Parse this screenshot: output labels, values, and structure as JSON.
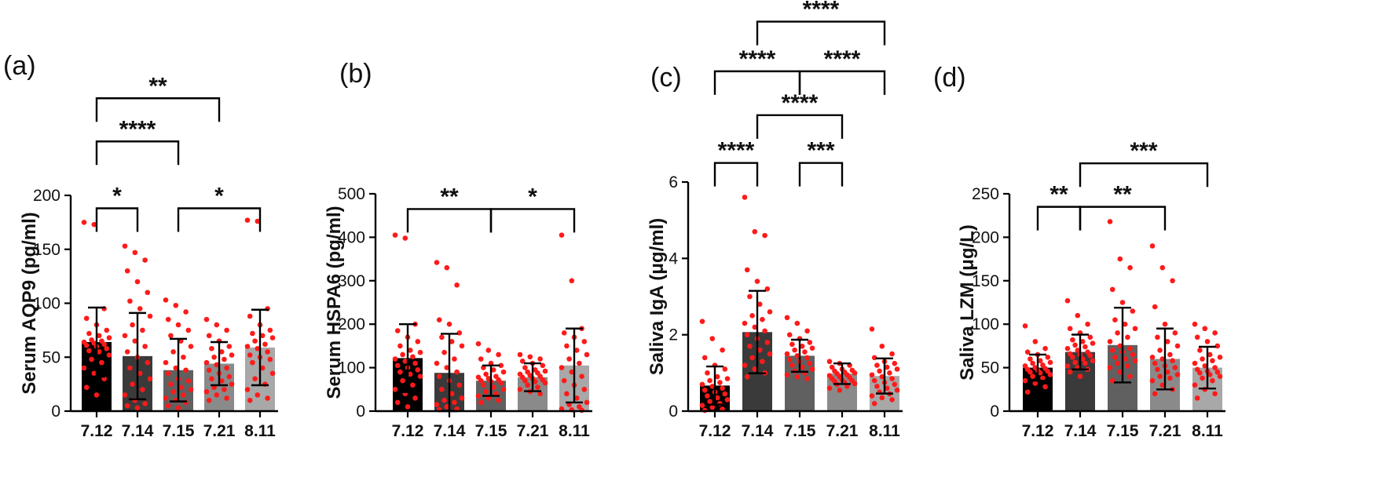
{
  "chart_data": [
    {
      "type": "bar",
      "panel_label": "(a)",
      "ylabel": "Serum AQP9 (pg/ml)",
      "categories": [
        "7.12",
        "7.14",
        "7.15",
        "7.21",
        "8.11"
      ],
      "values": [
        64,
        51,
        38,
        44,
        59
      ],
      "sd": [
        32,
        40,
        29,
        20,
        35
      ],
      "bar_colors": [
        "#000000",
        "#3a3a3a",
        "#606060",
        "#8a8a8a",
        "#a8a8a8"
      ],
      "ylim": [
        0,
        200
      ],
      "yticks": [
        0,
        50,
        100,
        150,
        200
      ],
      "points": [
        [
          175,
          173,
          95,
          86,
          80,
          75,
          72,
          70,
          68,
          66,
          65,
          64,
          63,
          62,
          61,
          60,
          58,
          56,
          55,
          52,
          48,
          45,
          40,
          35,
          30,
          22,
          15
        ],
        [
          153,
          147,
          140,
          130,
          120,
          110,
          102,
          95,
          88,
          80,
          75,
          70,
          65,
          60,
          55,
          50,
          45,
          40,
          35,
          30,
          25,
          20,
          15,
          10,
          7,
          5,
          3
        ],
        [
          103,
          98,
          92,
          85,
          80,
          75,
          70,
          65,
          60,
          55,
          50,
          45,
          40,
          38,
          35,
          30,
          28,
          25,
          22,
          20,
          18,
          15,
          12,
          10,
          8,
          5,
          3
        ],
        [
          85,
          80,
          75,
          70,
          65,
          60,
          58,
          55,
          52,
          50,
          48,
          45,
          43,
          40,
          38,
          35,
          32,
          30,
          28,
          25,
          22,
          20,
          18,
          15,
          12,
          10
        ],
        [
          177,
          176,
          95,
          88,
          80,
          75,
          72,
          70,
          68,
          65,
          62,
          60,
          58,
          55,
          52,
          50,
          48,
          45,
          40,
          35,
          30,
          25,
          20,
          15,
          12,
          10
        ]
      ],
      "annotations": [
        {
          "from": "7.12",
          "to": "7.14",
          "label": "*",
          "y": 188
        },
        {
          "from": "7.15",
          "to": "8.11",
          "label": "*",
          "y": 188
        },
        {
          "from": "7.12",
          "to": "7.15",
          "label": "****",
          "y": 250
        },
        {
          "from": "7.12",
          "to": "7.21",
          "label": "**",
          "y": 290
        }
      ]
    },
    {
      "type": "bar",
      "panel_label": "(b)",
      "ylabel": "Serum HSPA6 (pg/ml)",
      "categories": [
        "7.12",
        "7.14",
        "7.15",
        "7.21",
        "8.11"
      ],
      "values": [
        122,
        88,
        70,
        78,
        105
      ],
      "sd": [
        78,
        90,
        35,
        32,
        85
      ],
      "bar_colors": [
        "#000000",
        "#3a3a3a",
        "#606060",
        "#8a8a8a",
        "#a8a8a8"
      ],
      "ylim": [
        0,
        500
      ],
      "yticks": [
        0,
        100,
        200,
        300,
        400,
        500
      ],
      "points": [
        [
          405,
          398,
          200,
          185,
          170,
          160,
          150,
          140,
          135,
          130,
          125,
          120,
          115,
          110,
          105,
          100,
          95,
          90,
          85,
          80,
          70,
          60,
          50,
          40,
          30,
          20,
          10
        ],
        [
          342,
          330,
          290,
          210,
          200,
          180,
          170,
          160,
          150,
          135,
          120,
          110,
          100,
          90,
          80,
          70,
          60,
          50,
          40,
          30,
          25,
          20,
          15,
          10,
          5,
          3
        ],
        [
          155,
          140,
          130,
          120,
          110,
          105,
          100,
          95,
          90,
          85,
          80,
          78,
          75,
          72,
          70,
          68,
          65,
          60,
          55,
          50,
          45,
          40,
          35,
          30,
          25,
          20
        ],
        [
          130,
          125,
          120,
          115,
          110,
          105,
          100,
          95,
          92,
          90,
          88,
          85,
          82,
          80,
          78,
          75,
          72,
          70,
          68,
          65,
          60,
          55,
          50,
          45,
          40
        ],
        [
          405,
          300,
          190,
          180,
          170,
          160,
          150,
          140,
          130,
          120,
          110,
          100,
          90,
          80,
          70,
          60,
          50,
          40,
          30,
          20,
          15,
          10,
          5,
          3,
          2
        ]
      ],
      "annotations": [
        {
          "from": "7.12",
          "to": "7.15",
          "label": "**",
          "y": 465
        },
        {
          "from": "7.15",
          "to": "8.11",
          "label": "*",
          "y": 465
        }
      ]
    },
    {
      "type": "bar",
      "panel_label": "(c)",
      "ylabel": "Saliva IgA (μg/ml)",
      "categories": [
        "7.12",
        "7.14",
        "7.15",
        "7.21",
        "8.11"
      ],
      "values": [
        0.67,
        2.07,
        1.45,
        0.98,
        0.92
      ],
      "sd": [
        0.5,
        1.08,
        0.42,
        0.27,
        0.46
      ],
      "bar_colors": [
        "#000000",
        "#3a3a3a",
        "#606060",
        "#8a8a8a",
        "#a8a8a8"
      ],
      "ylim": [
        0,
        6
      ],
      "yticks": [
        0,
        2,
        4,
        6
      ],
      "points": [
        [
          2.35,
          1.9,
          1.6,
          1.4,
          1.2,
          1.1,
          1.0,
          0.9,
          0.85,
          0.8,
          0.75,
          0.7,
          0.65,
          0.6,
          0.55,
          0.5,
          0.45,
          0.4,
          0.35,
          0.3,
          0.25,
          0.2,
          0.15,
          0.1,
          0.05,
          0.02
        ],
        [
          5.6,
          4.7,
          4.6,
          3.7,
          3.4,
          3.2,
          3.0,
          2.8,
          2.6,
          2.5,
          2.4,
          2.3,
          2.2,
          2.1,
          2.0,
          1.9,
          1.8,
          1.7,
          1.6,
          1.5,
          1.4,
          1.3,
          1.2,
          1.1,
          1.0,
          0.9
        ],
        [
          2.45,
          2.3,
          2.1,
          2.0,
          1.9,
          1.8,
          1.75,
          1.7,
          1.65,
          1.6,
          1.55,
          1.5,
          1.45,
          1.4,
          1.35,
          1.3,
          1.25,
          1.2,
          1.15,
          1.1,
          1.05,
          1.0,
          0.95,
          0.9,
          0.85
        ],
        [
          1.3,
          1.25,
          1.2,
          1.15,
          1.1,
          1.07,
          1.05,
          1.02,
          1.0,
          0.98,
          0.95,
          0.93,
          0.9,
          0.88,
          0.85,
          0.82,
          0.8,
          0.78,
          0.75,
          0.72,
          0.7,
          0.65,
          0.6,
          0.55
        ],
        [
          2.15,
          1.7,
          1.5,
          1.4,
          1.3,
          1.25,
          1.2,
          1.15,
          1.1,
          1.05,
          1.0,
          0.95,
          0.9,
          0.85,
          0.8,
          0.75,
          0.7,
          0.65,
          0.6,
          0.55,
          0.5,
          0.45,
          0.4,
          0.35,
          0.3,
          0.2
        ]
      ],
      "annotations": [
        {
          "from": "7.12",
          "to": "7.14",
          "label": "****",
          "y": 6.5
        },
        {
          "from": "7.15",
          "to": "7.21",
          "label": "***",
          "y": 6.5
        },
        {
          "from": "7.14",
          "to": "7.21",
          "label": "****",
          "y": 7.75
        },
        {
          "from": "7.12",
          "to": "7.15",
          "label": "****",
          "y": 8.9
        },
        {
          "from": "7.15",
          "to": "8.11",
          "label": "****",
          "y": 8.9
        },
        {
          "from": "7.14",
          "to": "8.11",
          "label": "****",
          "y": 10.2
        }
      ]
    },
    {
      "type": "bar",
      "panel_label": "(d)",
      "ylabel": "Saliva LZM (μg/L)",
      "categories": [
        "7.12",
        "7.14",
        "7.15",
        "7.21",
        "8.11"
      ],
      "values": [
        50,
        68,
        76,
        60,
        50
      ],
      "sd": [
        15,
        20,
        43,
        35,
        24
      ],
      "bar_colors": [
        "#000000",
        "#3a3a3a",
        "#606060",
        "#8a8a8a",
        "#a8a8a8"
      ],
      "ylim": [
        0,
        250
      ],
      "yticks": [
        0,
        50,
        100,
        150,
        200,
        250
      ],
      "points": [
        [
          98,
          80,
          72,
          68,
          65,
          62,
          60,
          58,
          56,
          55,
          53,
          52,
          50,
          49,
          48,
          47,
          46,
          45,
          44,
          42,
          40,
          38,
          35,
          32,
          28,
          22
        ],
        [
          127,
          110,
          100,
          95,
          90,
          85,
          82,
          80,
          78,
          76,
          74,
          72,
          70,
          68,
          66,
          65,
          64,
          62,
          60,
          58,
          56,
          55,
          52,
          50,
          48,
          45,
          40
        ],
        [
          218,
          175,
          165,
          140,
          125,
          115,
          105,
          100,
          95,
          90,
          85,
          80,
          75,
          72,
          70,
          68,
          65,
          62,
          60,
          58,
          55,
          52,
          50,
          45,
          40,
          35
        ],
        [
          190,
          165,
          150,
          120,
          100,
          90,
          85,
          80,
          75,
          70,
          65,
          62,
          60,
          58,
          55,
          52,
          50,
          48,
          45,
          42,
          40,
          38,
          35,
          30,
          25,
          20
        ],
        [
          100,
          95,
          90,
          85,
          80,
          75,
          70,
          65,
          62,
          60,
          58,
          55,
          52,
          50,
          48,
          46,
          45,
          44,
          42,
          40,
          38,
          35,
          30,
          25,
          20,
          15
        ]
      ],
      "annotations": [
        {
          "from": "7.12",
          "to": "7.14",
          "label": "**",
          "y": 235
        },
        {
          "from": "7.14",
          "to": "7.21",
          "label": "**",
          "y": 235
        },
        {
          "from": "7.14",
          "to": "8.11",
          "label": "***",
          "y": 285
        }
      ]
    }
  ]
}
